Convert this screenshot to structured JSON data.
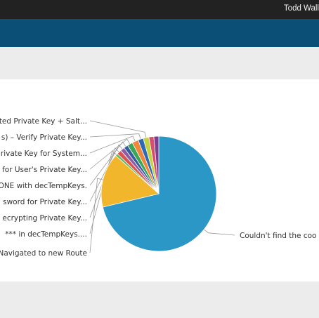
{
  "header": {
    "user_name": "Todd Wall"
  },
  "chart_data": {
    "type": "pie",
    "slices": [
      {
        "label": "Couldn't find the coo",
        "value": 72.0,
        "color": "#2a97c7"
      },
      {
        "label": "Navigated to new Route",
        "value": 15.4,
        "color": "#f2b62c"
      },
      {
        "label": "*** in decTempKeys....",
        "value": 0.7,
        "color": "#5cb85c"
      },
      {
        "label": "ecrypting Private Key...",
        "value": 1.3,
        "color": "#d9534f"
      },
      {
        "label": "sword for Private Key...",
        "value": 1.2,
        "color": "#8e5ba5"
      },
      {
        "label": "ONE with decTempKeys.",
        "value": 1.2,
        "color": "#355c9b"
      },
      {
        "label": "for User's Private Key...",
        "value": 1.5,
        "color": "#3aa657"
      },
      {
        "label": "rivate Key for System...",
        "value": 1.8,
        "color": "#f0883a"
      },
      {
        "label": "s) – Verify Private Key...",
        "value": 1.5,
        "color": "#2f69b5"
      },
      {
        "label": "ted Private Key + Salt...",
        "value": 1.6,
        "color": "#c3d443"
      },
      {
        "label": "",
        "value": 1.4,
        "color": "#d4506c"
      },
      {
        "label": "",
        "value": 1.4,
        "color": "#7f3d8f"
      }
    ]
  }
}
